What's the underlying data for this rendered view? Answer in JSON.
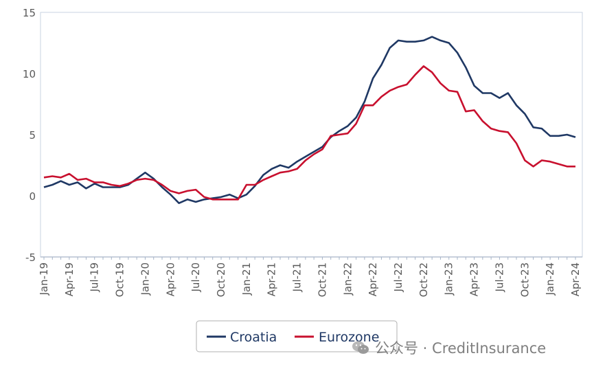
{
  "chart_data": {
    "type": "line",
    "title": "",
    "xlabel": "",
    "ylabel": "",
    "ylim": [
      -5,
      15
    ],
    "yticks": [
      -5,
      0,
      5,
      10,
      15
    ],
    "grid": false,
    "legend_position": "bottom",
    "x_tick_labels": [
      "Jan-19",
      "Apr-19",
      "Jul-19",
      "Oct-19",
      "Jan-20",
      "Apr-20",
      "Jul-20",
      "Oct-20",
      "Jan-21",
      "Apr-21",
      "Jul-21",
      "Oct-21",
      "Jan-22",
      "Apr-22",
      "Jul-22",
      "Oct-22",
      "Jan-23",
      "Apr-23",
      "Jul-23",
      "Oct-23",
      "Jan-24",
      "Apr-24"
    ],
    "x_tick_every_months": 3,
    "series": [
      {
        "name": "Croatia",
        "color": "#1f3864",
        "values": [
          0.7,
          0.9,
          1.2,
          0.9,
          1.1,
          0.6,
          1.0,
          0.7,
          0.7,
          0.7,
          0.9,
          1.4,
          1.9,
          1.4,
          0.7,
          0.1,
          -0.6,
          -0.3,
          -0.5,
          -0.3,
          -0.2,
          -0.1,
          0.1,
          -0.2,
          0.1,
          0.8,
          1.7,
          2.2,
          2.5,
          2.3,
          2.8,
          3.2,
          3.6,
          4.0,
          4.8,
          5.3,
          5.7,
          6.4,
          7.7,
          9.6,
          10.7,
          12.1,
          12.7,
          12.6,
          12.6,
          12.7,
          13.0,
          12.7,
          12.5,
          11.7,
          10.5,
          9.0,
          8.4,
          8.4,
          8.0,
          8.4,
          7.4,
          6.7,
          5.6,
          5.5,
          4.9,
          4.9,
          5.0,
          4.8
        ]
      },
      {
        "name": "Eurozone",
        "color": "#c8102e",
        "values": [
          1.5,
          1.6,
          1.5,
          1.8,
          1.3,
          1.4,
          1.1,
          1.1,
          0.9,
          0.8,
          1.0,
          1.3,
          1.4,
          1.3,
          0.9,
          0.4,
          0.2,
          0.4,
          0.5,
          -0.1,
          -0.3,
          -0.3,
          -0.3,
          -0.3,
          0.9,
          0.9,
          1.3,
          1.6,
          1.9,
          2.0,
          2.2,
          2.9,
          3.4,
          3.8,
          4.9,
          5.0,
          5.1,
          5.9,
          7.4,
          7.4,
          8.1,
          8.6,
          8.9,
          9.1,
          9.9,
          10.6,
          10.1,
          9.2,
          8.6,
          8.5,
          6.9,
          7.0,
          6.1,
          5.5,
          5.3,
          5.2,
          4.3,
          2.9,
          2.4,
          2.9,
          2.8,
          2.6,
          2.4,
          2.4
        ]
      }
    ]
  },
  "watermark": {
    "text": "公众号 · CreditInsurance"
  }
}
